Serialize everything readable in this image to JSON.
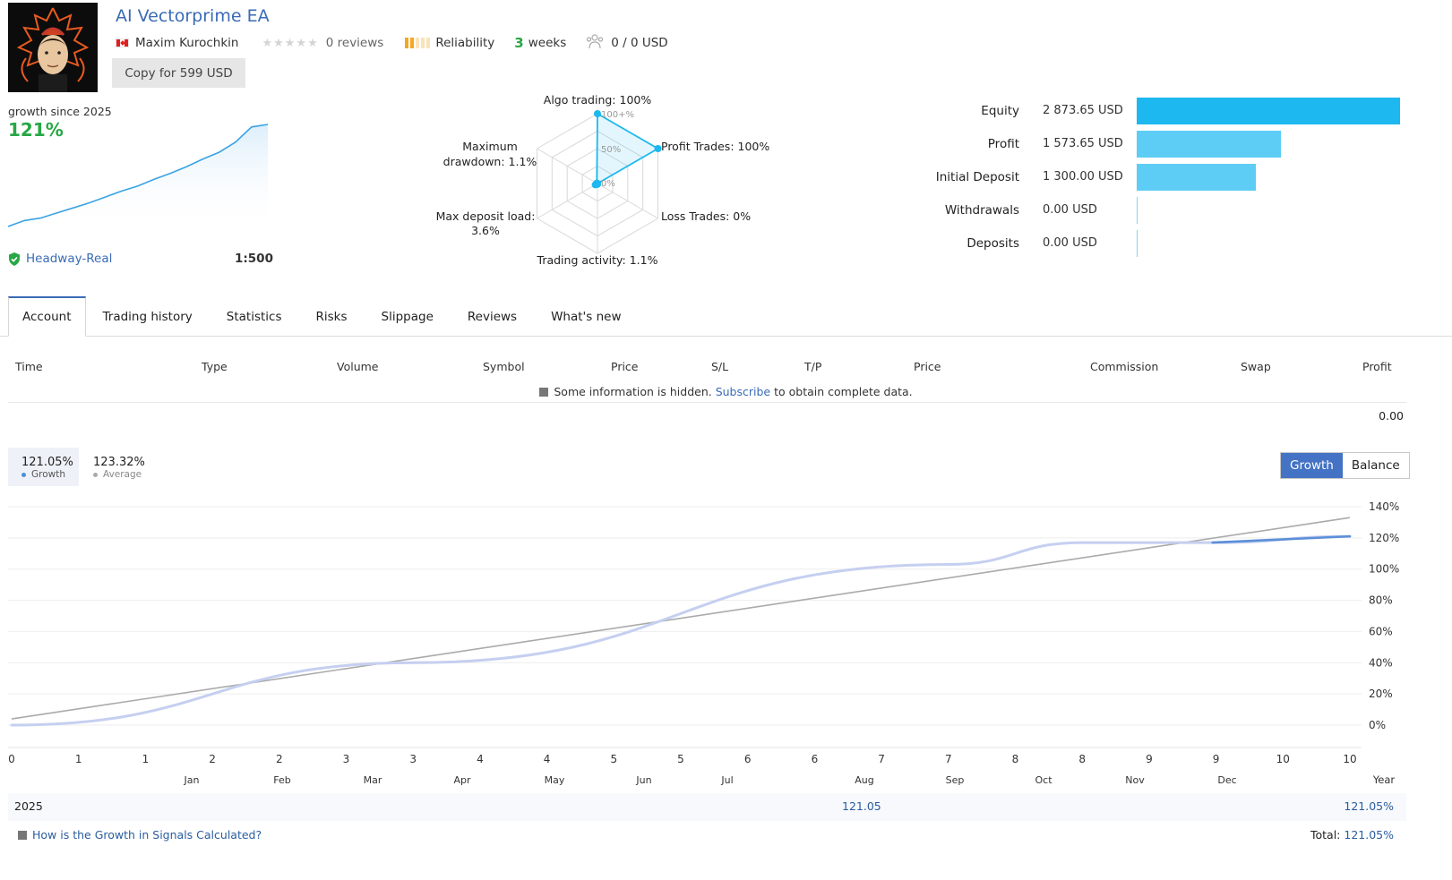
{
  "header": {
    "title": "AI Vectorprime EA",
    "author": "Maxim Kurochkin",
    "reviews": "0 reviews",
    "reliability_label": "Reliability",
    "reliability_level": 2,
    "weeks_num": "3",
    "weeks_label": "weeks",
    "subscribers": "0 / 0 USD",
    "copy_button": "Copy for 599 USD"
  },
  "growth_summary": {
    "since_label": "growth since 2025",
    "value": "121%",
    "broker": "Headway-Real",
    "leverage": "1:500"
  },
  "radar": {
    "axes": [
      {
        "label": "Algo trading: 100%",
        "value": 100
      },
      {
        "label": "Profit Trades: 100%",
        "value": 100
      },
      {
        "label": "Loss Trades: 0%",
        "value": 0
      },
      {
        "label": "Trading activity: 1.1%",
        "value": 1.1
      },
      {
        "label_line1": "Max deposit load:",
        "label_line2": "3.6%",
        "value": 3.6
      },
      {
        "label_line1": "Maximum",
        "label_line2": "drawdown: 1.1%",
        "value": 1.1
      }
    ],
    "ring_labels": [
      "100+%",
      "50%",
      "0%"
    ]
  },
  "equity": [
    {
      "label": "Equity",
      "value": "2 873.65 USD",
      "amount": 2873.65,
      "color": "#1cb8ef"
    },
    {
      "label": "Profit",
      "value": "1 573.65 USD",
      "amount": 1573.65,
      "color": "#5ecdf5"
    },
    {
      "label": "Initial Deposit",
      "value": "1 300.00 USD",
      "amount": 1300.0,
      "color": "#5ecdf5"
    },
    {
      "label": "Withdrawals",
      "value": "0.00 USD",
      "amount": 0,
      "color": "#5ecdf5"
    },
    {
      "label": "Deposits",
      "value": "0.00 USD",
      "amount": 0,
      "color": "#5ecdf5"
    }
  ],
  "tabs": [
    "Account",
    "Trading history",
    "Statistics",
    "Risks",
    "Slippage",
    "Reviews",
    "What's new"
  ],
  "table": {
    "columns": [
      "Time",
      "Type",
      "Volume",
      "Symbol",
      "Price",
      "S/L",
      "T/P",
      "Price",
      "Commission",
      "Swap",
      "Profit"
    ],
    "hidden_note_pre": "Some information is hidden.",
    "hidden_note_link": "Subscribe",
    "hidden_note_post": "to obtain complete data.",
    "total": "0.00"
  },
  "growth_stats": {
    "growth_value": "121.05%",
    "growth_label": "Growth",
    "average_value": "123.32%",
    "average_label": "Average",
    "toggle_on": "Growth",
    "toggle_off": "Balance"
  },
  "chart_data": {
    "type": "line",
    "x_ticks": [
      "0",
      "1",
      "1",
      "2",
      "2",
      "3",
      "3",
      "4",
      "4",
      "5",
      "5",
      "6",
      "6",
      "7",
      "7",
      "8",
      "8",
      "9",
      "9",
      "10",
      "10"
    ],
    "months": [
      "Jan",
      "Feb",
      "Mar",
      "Apr",
      "May",
      "Jun",
      "Jul",
      "Aug",
      "Sep",
      "Oct",
      "Nov",
      "Dec"
    ],
    "x_end_label": "Year",
    "y_ticks": [
      "140%",
      "120%",
      "100%",
      "80%",
      "60%",
      "40%",
      "20%",
      "0%"
    ],
    "ylim": [
      0,
      140
    ],
    "series": [
      {
        "name": "Growth",
        "color": "#c5cff0",
        "values": [
          [
            0,
            0
          ],
          [
            3,
            40
          ],
          [
            7,
            103
          ],
          [
            8,
            117
          ],
          [
            9,
            117
          ],
          [
            10,
            121
          ]
        ]
      },
      {
        "name": "Average",
        "color": "#aaaaaa",
        "values": [
          [
            0,
            4
          ],
          [
            10,
            133
          ]
        ]
      }
    ]
  },
  "mini_chart_data": {
    "type": "area",
    "values": [
      0,
      7,
      10,
      16,
      22,
      28,
      35,
      42,
      48,
      56,
      63,
      71,
      80,
      88,
      100,
      118,
      121
    ]
  },
  "footer": {
    "year": "2025",
    "aug_value": "121.05",
    "year_total": "121.05%",
    "how_link": "How is the Growth in Signals Calculated?",
    "total_label": "Total:",
    "total_value": "121.05%"
  }
}
